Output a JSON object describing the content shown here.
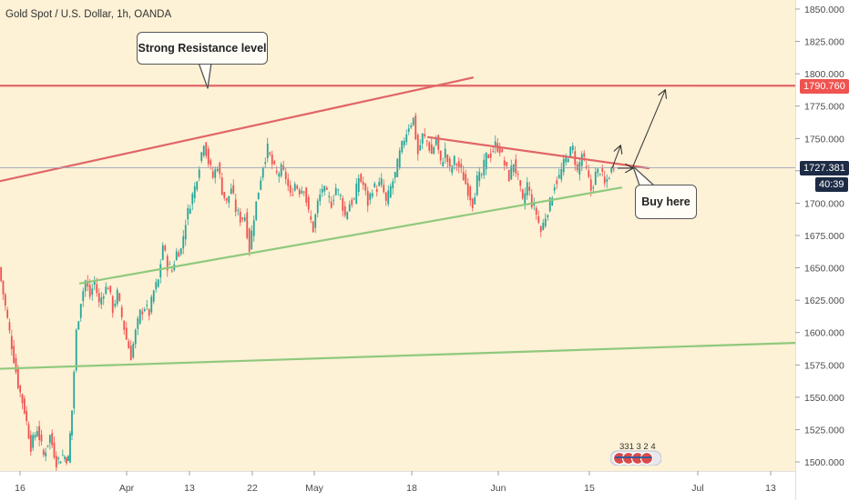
{
  "header": {
    "title": "Gold Spot / U.S. Dollar, 1h, OANDA"
  },
  "colors": {
    "background": "#fdf1d6",
    "up_candle": "#26a69a",
    "down_candle": "#ef5350",
    "resistance": "#e06666",
    "support": "#8fc97d",
    "current_price_tag": "#1e2b45",
    "resistance_tag": "#ef5350"
  },
  "annotations": {
    "resistance_callout": "Strong Resistance level",
    "buy_callout": "Buy here"
  },
  "price_tags": {
    "resistance": "1790.760",
    "current": "1727.381",
    "countdown": "40:39"
  },
  "logo": {
    "text": "331 3 2 4",
    "icon": "tradingview-flag-badge-icon"
  },
  "chart_data": {
    "type": "candlestick",
    "title": "Gold Spot / U.S. Dollar, 1h, OANDA",
    "y_axis": {
      "ylim": [
        1493,
        1857
      ],
      "ticks": [
        "1850.000",
        "1825.000",
        "1800.000",
        "1775.000",
        "1750.000",
        "1725.000",
        "1700.000",
        "1675.000",
        "1650.000",
        "1625.000",
        "1600.000",
        "1575.000",
        "1550.000",
        "1525.000",
        "1500.000"
      ],
      "tick_values": [
        1850,
        1825,
        1800,
        1775,
        1750,
        1725,
        1700,
        1675,
        1650,
        1625,
        1600,
        1575,
        1550,
        1525,
        1500
      ]
    },
    "x_axis": {
      "labels": [
        "16",
        "Apr",
        "13",
        "22",
        "May",
        "18",
        "Jun",
        "15",
        "Jul",
        "13"
      ]
    },
    "price_path": [
      [
        0,
        1650
      ],
      [
        7,
        1620
      ],
      [
        14,
        1590
      ],
      [
        21,
        1560
      ],
      [
        28,
        1540
      ],
      [
        35,
        1512
      ],
      [
        42,
        1526
      ],
      [
        49,
        1505
      ],
      [
        56,
        1520
      ],
      [
        63,
        1500
      ],
      [
        70,
        1505
      ],
      [
        76,
        1502
      ],
      [
        80,
        1540
      ],
      [
        85,
        1600
      ],
      [
        90,
        1625
      ],
      [
        95,
        1640
      ],
      [
        100,
        1628
      ],
      [
        105,
        1640
      ],
      [
        110,
        1622
      ],
      [
        115,
        1632
      ],
      [
        120,
        1636
      ],
      [
        125,
        1618
      ],
      [
        130,
        1630
      ],
      [
        135,
        1612
      ],
      [
        140,
        1595
      ],
      [
        145,
        1582
      ],
      [
        150,
        1600
      ],
      [
        155,
        1615
      ],
      [
        160,
        1620
      ],
      [
        165,
        1615
      ],
      [
        170,
        1632
      ],
      [
        175,
        1640
      ],
      [
        180,
        1668
      ],
      [
        185,
        1652
      ],
      [
        190,
        1648
      ],
      [
        195,
        1662
      ],
      [
        200,
        1664
      ],
      [
        205,
        1686
      ],
      [
        210,
        1700
      ],
      [
        215,
        1712
      ],
      [
        220,
        1730
      ],
      [
        225,
        1748
      ],
      [
        230,
        1732
      ],
      [
        235,
        1720
      ],
      [
        240,
        1730
      ],
      [
        245,
        1710
      ],
      [
        250,
        1700
      ],
      [
        255,
        1712
      ],
      [
        260,
        1695
      ],
      [
        265,
        1688
      ],
      [
        270,
        1690
      ],
      [
        275,
        1665
      ],
      [
        280,
        1690
      ],
      [
        285,
        1710
      ],
      [
        290,
        1730
      ],
      [
        295,
        1742
      ],
      [
        300,
        1730
      ],
      [
        305,
        1722
      ],
      [
        310,
        1726
      ],
      [
        315,
        1720
      ],
      [
        320,
        1705
      ],
      [
        325,
        1715
      ],
      [
        330,
        1710
      ],
      [
        335,
        1712
      ],
      [
        340,
        1692
      ],
      [
        345,
        1680
      ],
      [
        350,
        1700
      ],
      [
        355,
        1712
      ],
      [
        360,
        1706
      ],
      [
        365,
        1700
      ],
      [
        370,
        1712
      ],
      [
        375,
        1705
      ],
      [
        380,
        1690
      ],
      [
        385,
        1700
      ],
      [
        390,
        1702
      ],
      [
        395,
        1720
      ],
      [
        400,
        1714
      ],
      [
        405,
        1700
      ],
      [
        410,
        1712
      ],
      [
        415,
        1712
      ],
      [
        420,
        1716
      ],
      [
        425,
        1700
      ],
      [
        430,
        1712
      ],
      [
        435,
        1722
      ],
      [
        440,
        1738
      ],
      [
        445,
        1750
      ],
      [
        450,
        1760
      ],
      [
        455,
        1765
      ],
      [
        460,
        1738
      ],
      [
        465,
        1752
      ],
      [
        470,
        1748
      ],
      [
        475,
        1738
      ],
      [
        480,
        1750
      ],
      [
        485,
        1730
      ],
      [
        490,
        1740
      ],
      [
        495,
        1725
      ],
      [
        500,
        1733
      ],
      [
        505,
        1728
      ],
      [
        510,
        1720
      ],
      [
        515,
        1710
      ],
      [
        520,
        1700
      ],
      [
        525,
        1718
      ],
      [
        530,
        1722
      ],
      [
        535,
        1736
      ],
      [
        540,
        1738
      ],
      [
        545,
        1745
      ],
      [
        550,
        1742
      ],
      [
        555,
        1730
      ],
      [
        560,
        1720
      ],
      [
        565,
        1732
      ],
      [
        570,
        1718
      ],
      [
        575,
        1700
      ],
      [
        580,
        1715
      ],
      [
        585,
        1700
      ],
      [
        590,
        1692
      ],
      [
        595,
        1678
      ],
      [
        600,
        1690
      ],
      [
        605,
        1700
      ],
      [
        610,
        1715
      ],
      [
        615,
        1720
      ],
      [
        620,
        1730
      ],
      [
        625,
        1738
      ],
      [
        630,
        1742
      ],
      [
        635,
        1724
      ],
      [
        640,
        1738
      ],
      [
        645,
        1725
      ],
      [
        650,
        1710
      ],
      [
        655,
        1722
      ],
      [
        660,
        1726
      ],
      [
        665,
        1714
      ],
      [
        670,
        1722
      ],
      [
        675,
        1730
      ]
    ],
    "trendlines": [
      {
        "name": "resistance",
        "from": [
          0,
          1717
        ],
        "to": [
          519,
          1797
        ]
      },
      {
        "name": "horizontal resistance",
        "from": [
          0,
          1790.76
        ],
        "to": [
          873,
          1790.76
        ]
      },
      {
        "name": "descending resistance",
        "from": [
          470,
          1751
        ],
        "to": [
          712,
          1727
        ]
      },
      {
        "name": "ascending support",
        "from": [
          88,
          1638
        ],
        "to": [
          682,
          1712
        ]
      },
      {
        "name": "long-term support",
        "from": [
          0,
          1572
        ],
        "to": [
          873,
          1592
        ]
      }
    ],
    "current_price": 1727.381,
    "resistance_price": 1790.76,
    "projection": [
      [
        672,
        1727
      ],
      [
        681,
        1744
      ],
      [
        694,
        1727
      ],
      [
        730,
        1787
      ]
    ],
    "grid": false,
    "legend": "none"
  }
}
